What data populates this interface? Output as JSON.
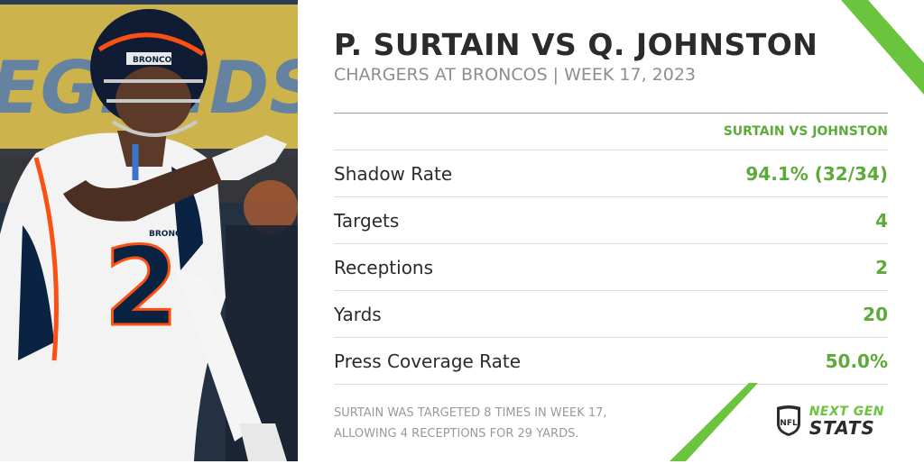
{
  "header": {
    "title": "P. SURTAIN VS Q. JOHNSTON",
    "subtitle": "CHARGERS AT BRONCOS | WEEK 17, 2023"
  },
  "table": {
    "column_header": "SURTAIN VS JOHNSTON",
    "rows": [
      {
        "label": "Shadow Rate",
        "value": "94.1% (32/34)"
      },
      {
        "label": "Targets",
        "value": "4"
      },
      {
        "label": "Receptions",
        "value": "2"
      },
      {
        "label": "Yards",
        "value": "20"
      },
      {
        "label": "Press Coverage Rate",
        "value": "50.0%"
      }
    ]
  },
  "footnote": {
    "line1": "SURTAIN WAS TARGETED 8 TIMES IN WEEK 17,",
    "line2": "ALLOWING 4 RECEPTIONS FOR 29 YARDS."
  },
  "photo": {
    "jersey_number": "2",
    "helmet_text": "BRONCOS",
    "chest_text": "BRONCOS",
    "background_text": "EGENDS"
  },
  "logo": {
    "shield_text": "NFL",
    "line1": "NEXT GEN",
    "line2": "STATS"
  },
  "colors": {
    "accent_green": "#5cab3a",
    "logo_green": "#6ac43d",
    "title_text": "#2b2b2b",
    "subtitle_text": "#8e8e8e",
    "bronco_orange": "#fb4f14",
    "bronco_navy": "#0a2343"
  }
}
